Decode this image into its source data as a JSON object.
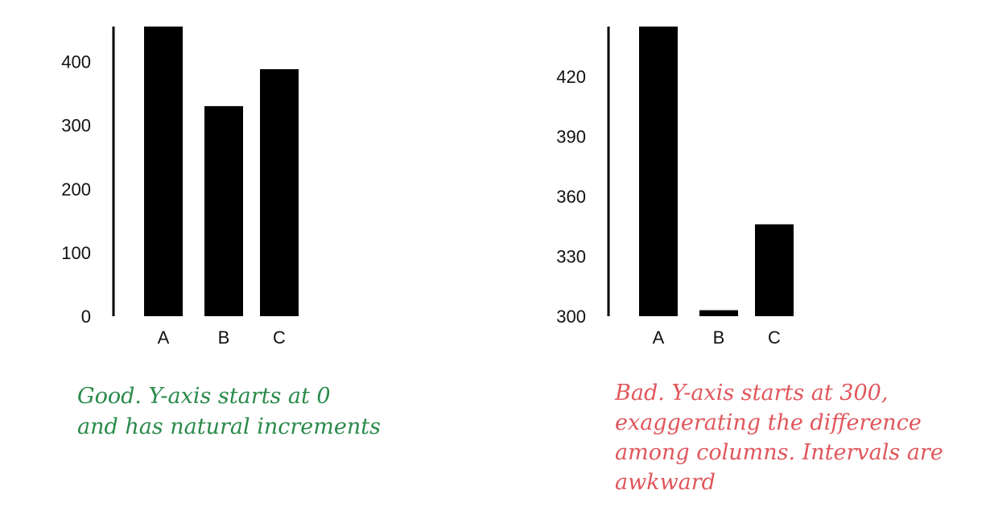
{
  "chart_data": [
    {
      "type": "bar",
      "categories": [
        "A",
        "B",
        "C"
      ],
      "values": [
        455,
        330,
        388
      ],
      "ylim": [
        0,
        455
      ],
      "yticks": [
        "0",
        "100",
        "200",
        "300",
        "400"
      ],
      "grid": false,
      "bar_color": "#000000"
    },
    {
      "type": "bar",
      "categories": [
        "A",
        "B",
        "C"
      ],
      "values": [
        445,
        303,
        346
      ],
      "ylim": [
        300,
        445
      ],
      "yticks": [
        "300",
        "330",
        "360",
        "390",
        "420"
      ],
      "grid": false,
      "bar_color": "#000000"
    }
  ],
  "captions": {
    "good": {
      "lines": [
        "Good. Y-axis starts at 0",
        "and has natural increments"
      ],
      "color": "#2a8a4a"
    },
    "bad": {
      "lines": [
        "Bad. Y-axis starts at 300,",
        "exaggerating the difference",
        "among columns. Intervals are",
        "awkward"
      ],
      "color": "#e0565b"
    }
  }
}
